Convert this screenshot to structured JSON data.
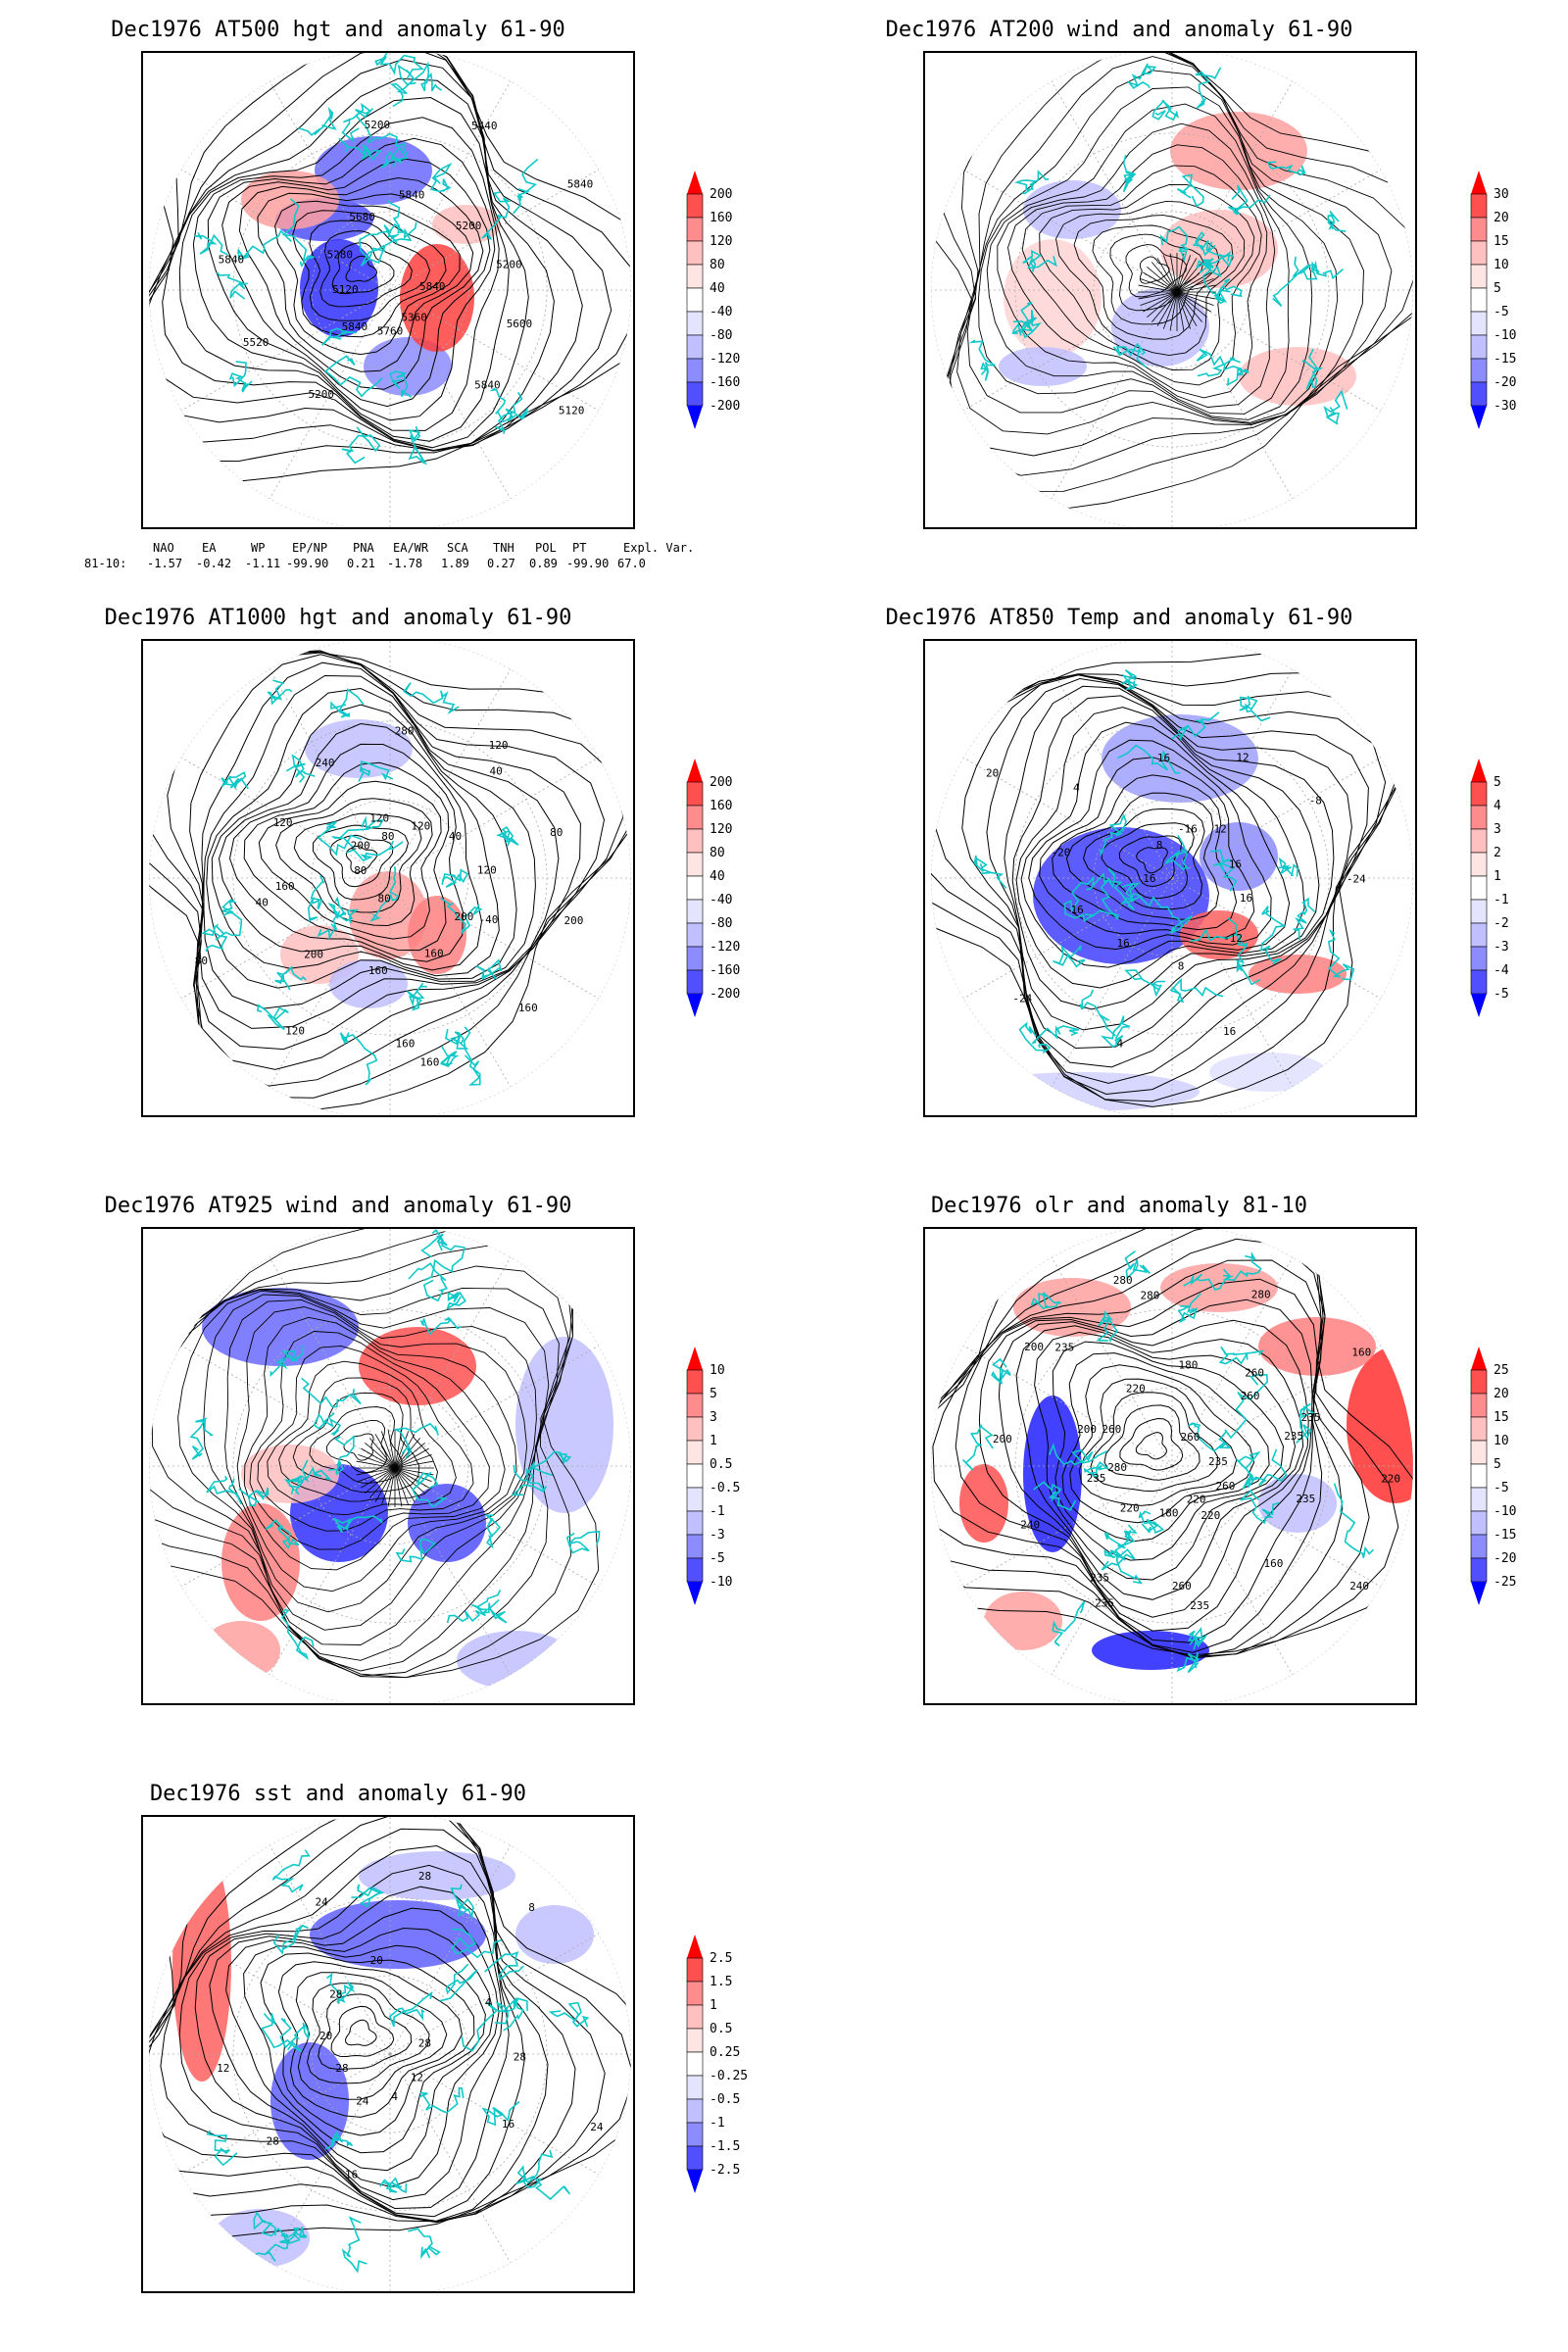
{
  "panels": [
    {
      "title": "Dec1976 AT500 hgt and anomaly 61-90",
      "variant": "hgt500",
      "contour_labels": [
        "5840",
        "5840",
        "5840",
        "5840",
        "5840",
        "5840",
        "5760",
        "5680",
        "5600",
        "5520",
        "5440",
        "5360",
        "5280",
        "5200",
        "5200",
        "5200",
        "5120",
        "5120",
        "5200"
      ],
      "colorbar_labels": [
        "200",
        "160",
        "120",
        "80",
        "40",
        "-40",
        "-80",
        "-120",
        "-160",
        "-200"
      ]
    },
    {
      "title": "Dec1976 AT200 wind and anomaly 61-90",
      "variant": "wind200",
      "contour_labels": [],
      "colorbar_labels": [
        "30",
        "20",
        "15",
        "10",
        "5",
        "-5",
        "-10",
        "-15",
        "-20",
        "-30"
      ]
    },
    {
      "title": "Dec1976 AT1000 hgt and anomaly 61-90",
      "variant": "hgt1000",
      "contour_labels": [
        "80",
        "120",
        "-40",
        "40",
        "120",
        "160",
        "200",
        "120",
        "200",
        "280",
        "160",
        "80",
        "40",
        "160",
        "240",
        "200",
        "80",
        "120",
        "160",
        "120",
        "80",
        "120",
        "80",
        "200",
        "160",
        "40",
        "160"
      ],
      "colorbar_labels": [
        "200",
        "160",
        "120",
        "80",
        "40",
        "-40",
        "-80",
        "-120",
        "-160",
        "-200"
      ]
    },
    {
      "title": "Dec1976 AT850 Temp and anomaly 61-90",
      "variant": "temp850",
      "contour_labels": [
        "16",
        "12",
        "8",
        "4",
        "-24",
        "-24",
        "-16",
        "-12",
        "-20",
        "-8",
        "4",
        "8",
        "16",
        "16",
        "12",
        "16",
        "20",
        "16",
        "16",
        "16"
      ],
      "colorbar_labels": [
        "5",
        "4",
        "3",
        "2",
        "1",
        "-1",
        "-2",
        "-3",
        "-4",
        "-5"
      ]
    },
    {
      "title": "Dec1976 AT925 wind and anomaly 61-90",
      "variant": "wind925",
      "contour_labels": [],
      "colorbar_labels": [
        "10",
        "5",
        "3",
        "1",
        "0.5",
        "-0.5",
        "-1",
        "-3",
        "-5",
        "-10"
      ]
    },
    {
      "title": "Dec1976 olr and anomaly 81-10",
      "variant": "olr",
      "contour_labels": [
        "260",
        "220",
        "200",
        "235",
        "235",
        "280",
        "260",
        "235",
        "260",
        "235",
        "200",
        "235",
        "220",
        "180",
        "160",
        "200",
        "160",
        "180",
        "220",
        "235",
        "240",
        "280",
        "220",
        "260",
        "235",
        "235",
        "280",
        "240",
        "280",
        "260",
        "260",
        "235",
        "220"
      ],
      "colorbar_labels": [
        "25",
        "20",
        "15",
        "10",
        "5",
        "-5",
        "-10",
        "-15",
        "-20",
        "-25"
      ]
    },
    {
      "title": "Dec1976 sst and anomaly 61-90",
      "variant": "sst",
      "contour_labels": [
        "28",
        "24",
        "20",
        "16",
        "12",
        "8",
        "4",
        "28",
        "28",
        "28",
        "28",
        "12",
        "20",
        "4",
        "16",
        "24",
        "24",
        "28"
      ],
      "colorbar_labels": [
        "2.5",
        "1.5",
        "1",
        "0.5",
        "0.25",
        "-0.25",
        "-0.5",
        "-1",
        "-1.5",
        "-2.5"
      ]
    }
  ],
  "indices": {
    "headers": [
      "NAO",
      "EA",
      "WP",
      "EP/NP",
      "PNA",
      "EA/WR",
      "SCA",
      "TNH",
      "POL",
      "PT",
      "Expl. Var."
    ],
    "row_label": "81-10:",
    "values": [
      "-1.57",
      "-0.42",
      "-1.11",
      "-99.90",
      "0.21",
      "-1.78",
      "1.89",
      "0.27",
      "0.89",
      "-99.90",
      "67.0"
    ]
  },
  "colors": {
    "colorbar": [
      "#ff0000",
      "#ff5050",
      "#ff8c8c",
      "#ffc0c0",
      "#ffe4e4",
      "#ffffff",
      "#e4e4ff",
      "#c0c0ff",
      "#8c8cff",
      "#5050ff",
      "#0000ff"
    ],
    "coast": "#10c8c8",
    "contour": "#000000",
    "grid": "#aaaaaa"
  }
}
